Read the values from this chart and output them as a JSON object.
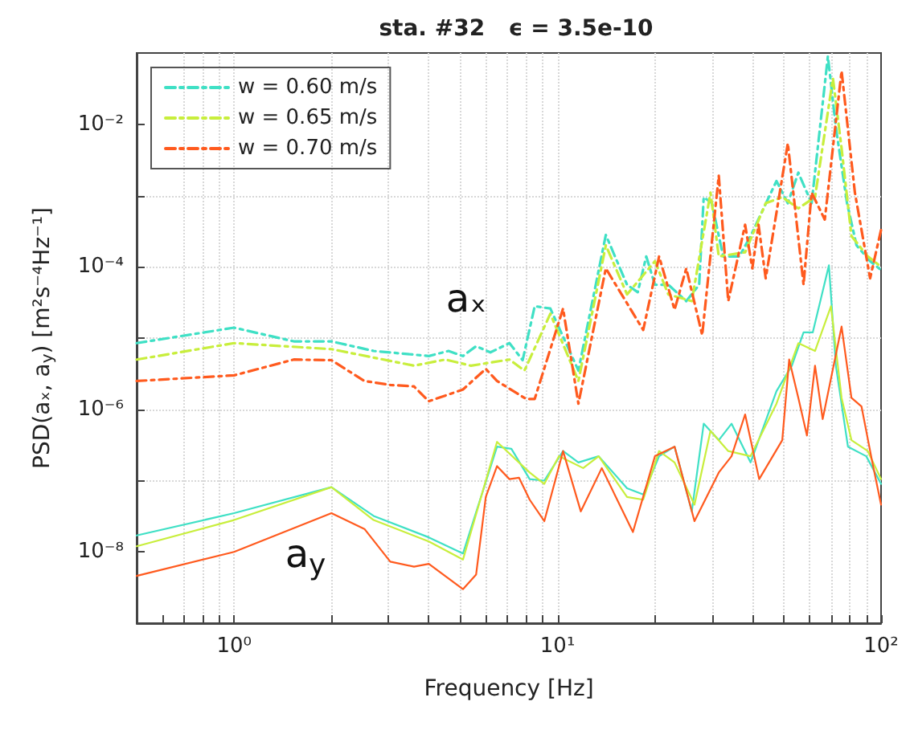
{
  "chart_data": {
    "type": "line",
    "title": "sta. #32   ϵ = 3.5e-10",
    "xlabel": "Frequency [Hz]",
    "ylabel": "PSD(aₓ, a$_{y}$) [m²s⁻⁴Hz⁻¹]",
    "log": "xy",
    "grid": true,
    "legend": "top left",
    "marker": "none",
    "xlim": [
      0.5,
      100
    ],
    "ylim": [
      1e-09,
      0.1
    ],
    "xticks": [
      {
        "value": 0.6,
        "label": null
      },
      {
        "value": 0.7,
        "label": null
      },
      {
        "value": 0.8,
        "label": null
      },
      {
        "value": 0.9,
        "label": null
      },
      {
        "value": 1,
        "label": "10⁰"
      },
      {
        "value": 2,
        "label": null
      },
      {
        "value": 3,
        "label": null
      },
      {
        "value": 4,
        "label": null
      },
      {
        "value": 5,
        "label": null
      },
      {
        "value": 6,
        "label": null
      },
      {
        "value": 7,
        "label": null
      },
      {
        "value": 8,
        "label": null
      },
      {
        "value": 9,
        "label": null
      },
      {
        "value": 10,
        "label": "10¹"
      },
      {
        "value": 20,
        "label": null
      },
      {
        "value": 30,
        "label": null
      },
      {
        "value": 40,
        "label": null
      },
      {
        "value": 50,
        "label": null
      },
      {
        "value": 60,
        "label": null
      },
      {
        "value": 70,
        "label": null
      },
      {
        "value": 80,
        "label": null
      },
      {
        "value": 90,
        "label": null
      },
      {
        "value": 100,
        "label": "10²"
      }
    ],
    "yticks": [
      {
        "value": 1e-08,
        "label": "10⁻⁸"
      },
      {
        "value": 1e-07,
        "label": null
      },
      {
        "value": 1e-06,
        "label": "10⁻⁶"
      },
      {
        "value": 1e-05,
        "label": null
      },
      {
        "value": 0.0001,
        "label": "10⁻⁴"
      },
      {
        "value": 0.001,
        "label": null
      },
      {
        "value": 0.01,
        "label": "10⁻²"
      }
    ],
    "annotations": [
      "aₓ",
      "a$_{y}$"
    ],
    "series": [
      {
        "name": "w = 0.60 m/s",
        "color": "#3fe0c5",
        "line_style": "dashed",
        "x": [
          0.5,
          1,
          1.53,
          2,
          2.7,
          4,
          4.6,
          5.1,
          5.6,
          6.2,
          7.1,
          7.8,
          8.5,
          9.5,
          11.6,
          14.1,
          16.4,
          17.7,
          18.8,
          20,
          22,
          25,
          27.4,
          28.3,
          30,
          32.5,
          36.5,
          39.5,
          47.5,
          51.5,
          55.5,
          61,
          68.5,
          72.5,
          78.5,
          84,
          92.5,
          100
        ],
        "values": [
          8.5e-06,
          1.4e-05,
          9e-06,
          9e-06,
          6.6e-06,
          5.6e-06,
          6.6e-06,
          5.6e-06,
          7.7e-06,
          6.3e-06,
          8.5e-06,
          4.9e-06,
          2.8e-05,
          2.6e-05,
          3.5e-06,
          0.00028,
          5.6e-05,
          4.4e-05,
          0.00014,
          5.6e-05,
          5.6e-05,
          3.3e-05,
          5.6e-05,
          0.00095,
          0.00078,
          0.00014,
          0.00014,
          0.00027,
          0.0016,
          0.00078,
          0.0021,
          0.00078,
          0.09,
          0.009,
          0.00078,
          0.0002,
          0.00012,
          9e-05
        ]
      },
      {
        "name": "w = 0.65 m/s",
        "color": "#c8ee3c",
        "line_style": "dashed",
        "x": [
          0.5,
          1,
          2,
          3.6,
          4.5,
          5.4,
          7.1,
          7.9,
          9.5,
          11.6,
          14.1,
          16.4,
          20,
          22,
          26,
          29.7,
          31.5,
          38,
          44,
          49.5,
          55.5,
          62.5,
          71,
          75.5,
          81,
          91,
          100
        ],
        "values": [
          5e-06,
          8.5e-06,
          7e-06,
          4.1e-06,
          5e-06,
          4.1e-06,
          5e-06,
          3.5e-06,
          2.2e-05,
          2.5e-06,
          0.0002,
          4.1e-05,
          0.00012,
          4.1e-05,
          3.3e-05,
          0.0011,
          0.00014,
          0.00016,
          0.00078,
          0.00095,
          0.00066,
          0.00095,
          0.044,
          0.0046,
          0.00027,
          0.00014,
          0.0001
        ]
      },
      {
        "name": "w = 0.70 m/s",
        "color": "#ff5a1e",
        "line_style": "dashed",
        "x": [
          0.5,
          1,
          1.53,
          2,
          2.53,
          3.04,
          3.6,
          4,
          5.1,
          6,
          6.5,
          8,
          8.5,
          10.4,
          11.6,
          14.1,
          18.4,
          20.6,
          23,
          25,
          28,
          31.5,
          33.7,
          38,
          40,
          41.8,
          44,
          51.5,
          57.6,
          61,
          67,
          75.5,
          83,
          92.5,
          100
        ],
        "values": [
          2.5e-06,
          3e-06,
          5e-06,
          4.9e-06,
          2.5e-06,
          2.2e-06,
          2.1e-06,
          1.3e-06,
          1.9e-06,
          3.7e-06,
          2.5e-06,
          1.4e-06,
          1.4e-06,
          2.6e-05,
          1.2e-06,
          9.5e-05,
          1.3e-05,
          0.00014,
          2.5e-05,
          9.5e-05,
          1.1e-05,
          0.0019,
          3.3e-05,
          0.00039,
          9.5e-05,
          0.00039,
          6.9e-05,
          0.0054,
          5.6e-05,
          0.0011,
          0.00046,
          0.056,
          0.0011,
          6.9e-05,
          0.00033
        ]
      },
      {
        "color": "#3fe0c5",
        "line_style": "solid",
        "x": [
          0.5,
          1,
          2,
          2.7,
          4,
          5.1,
          6.5,
          7.2,
          8.2,
          9.1,
          10.4,
          11.6,
          13.4,
          16.4,
          18.4,
          20.6,
          23,
          26,
          28.3,
          31.5,
          34.5,
          39.5,
          47.5,
          53,
          57.6,
          61.5,
          69,
          72.5,
          79,
          90,
          100
        ],
        "values": [
          1.7e-08,
          3.5e-08,
          8.1e-08,
          3.2e-08,
          1.6e-08,
          9.5e-09,
          3e-07,
          2.8e-07,
          1.05e-07,
          1e-07,
          2.6e-07,
          1.8e-07,
          2.2e-07,
          7.8e-08,
          6.4e-08,
          2.2e-07,
          3e-07,
          3.7e-08,
          6.3e-07,
          3.7e-07,
          6.3e-07,
          1.8e-07,
          1.8e-06,
          4.1e-06,
          1.2e-05,
          1.2e-05,
          0.000105,
          4.1e-06,
          3e-07,
          2.2e-07,
          9e-08
        ]
      },
      {
        "color": "#c8ee3c",
        "line_style": "solid",
        "x": [
          0.5,
          1,
          2,
          2.7,
          4,
          5.1,
          6.5,
          8.2,
          9.1,
          10.1,
          12,
          13.4,
          16.4,
          18.4,
          20.6,
          23,
          26.5,
          29.7,
          33.7,
          39.5,
          47.5,
          55.5,
          62.5,
          70,
          75.5,
          81,
          91,
          100
        ],
        "values": [
          1.2e-08,
          2.8e-08,
          8.1e-08,
          2.8e-08,
          1.4e-08,
          7.8e-09,
          3.5e-07,
          1.3e-07,
          9e-08,
          2.2e-07,
          1.5e-07,
          2.2e-07,
          5.9e-08,
          5.4e-08,
          2.6e-07,
          1.8e-07,
          4.6e-08,
          5e-07,
          2.6e-07,
          2.2e-07,
          1.2e-06,
          8.5e-06,
          6.6e-06,
          2.8e-05,
          1.45e-06,
          3.7e-07,
          2.6e-07,
          1.05e-07
        ]
      },
      {
        "color": "#ff5a1e",
        "line_style": "solid",
        "x": [
          0.5,
          1,
          2,
          2.53,
          3.04,
          3.6,
          4,
          5.1,
          5.6,
          6,
          6.5,
          7.1,
          7.6,
          8.2,
          9.1,
          10.4,
          11.8,
          13.7,
          17.1,
          20,
          23,
          26.5,
          31.5,
          34.5,
          38,
          42,
          49.5,
          52,
          55.5,
          59,
          62.5,
          66,
          75.5,
          81,
          87,
          94,
          100
        ],
        "values": [
          4.6e-09,
          1e-08,
          3.5e-08,
          2.1e-08,
          7.3e-09,
          6.2e-09,
          6.8e-09,
          3e-09,
          4.8e-09,
          5.9e-08,
          1.6e-07,
          1.05e-07,
          1.1e-07,
          5.4e-08,
          2.7e-08,
          2.6e-07,
          3.7e-08,
          1.5e-07,
          1.9e-08,
          2.2e-07,
          3e-07,
          2.7e-08,
          1.3e-07,
          2.2e-07,
          8.5e-07,
          1.05e-07,
          3.7e-07,
          5e-06,
          1.45e-06,
          4.3e-07,
          4.1e-06,
          7.3e-07,
          1.45e-05,
          1.45e-06,
          1.1e-06,
          1.8e-07,
          4.6e-08
        ]
      }
    ]
  }
}
